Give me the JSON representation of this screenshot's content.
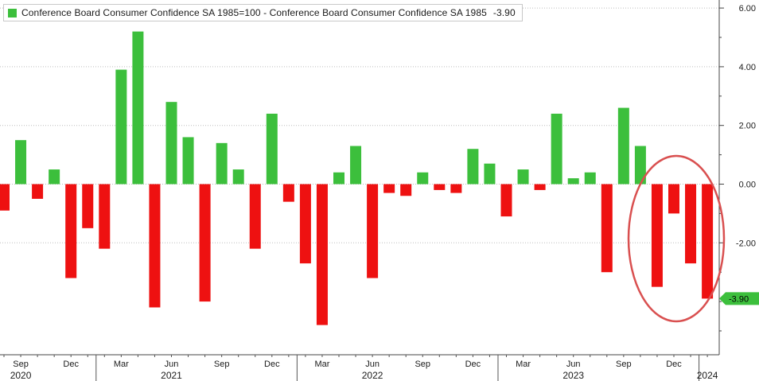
{
  "legend": {
    "series_label": "Conference Board Consumer Confidence SA 1985=100 - Conference Board Consumer Confidence SA 1985",
    "last_value": "-3.90",
    "swatch_color": "#3cbf3c"
  },
  "colors": {
    "positive": "#3cbf3c",
    "negative": "#ee1111",
    "background": "#ffffff",
    "highlight_circle": "#d95050"
  },
  "chart_data": {
    "type": "bar",
    "title": "",
    "xlabel": "",
    "ylabel": "",
    "ylim": [
      -5.8,
      6.2
    ],
    "y_ticks": [
      "6.00",
      "4.00",
      "2.00",
      "0.00",
      "-2.00"
    ],
    "y_axis_position": "right",
    "grid": "horizontal dotted",
    "last_value_label": "-3.90",
    "categories": [
      "2020-07",
      "2020-08",
      "2020-09",
      "2020-10",
      "2020-11",
      "2020-12",
      "2021-01",
      "2021-02",
      "2021-03",
      "2021-04",
      "2021-05",
      "2021-06",
      "2021-07",
      "2021-08",
      "2021-09",
      "2021-10",
      "2021-11",
      "2021-12",
      "2022-01",
      "2022-02",
      "2022-03",
      "2022-04",
      "2022-05",
      "2022-06",
      "2022-07",
      "2022-08",
      "2022-09",
      "2022-10",
      "2022-11",
      "2022-12",
      "2023-01",
      "2023-02",
      "2023-03",
      "2023-04",
      "2023-05",
      "2023-06",
      "2023-07",
      "2023-08",
      "2023-09",
      "2023-10",
      "2023-11",
      "2023-12",
      "2024-01"
    ],
    "values": [
      -0.9,
      1.5,
      -0.5,
      0.5,
      -3.2,
      -1.5,
      -2.2,
      3.9,
      5.2,
      -4.2,
      2.8,
      1.6,
      -4.0,
      1.4,
      0.5,
      -2.2,
      2.4,
      -0.6,
      -2.7,
      -4.8,
      0.4,
      1.3,
      -3.2,
      -0.3,
      -0.4,
      0.4,
      -0.2,
      -0.3,
      1.2,
      0.7,
      -1.1,
      0.5,
      -0.2,
      2.4,
      0.2,
      0.4,
      -3.0,
      2.6,
      1.3,
      -3.5,
      -1.0,
      -2.7,
      -3.9
    ],
    "x_tick_labels": [
      {
        "label": "Sep",
        "index": 1
      },
      {
        "label": "Dec",
        "index": 4
      },
      {
        "label": "Mar",
        "index": 7
      },
      {
        "label": "Jun",
        "index": 10
      },
      {
        "label": "Sep",
        "index": 13
      },
      {
        "label": "Dec",
        "index": 16
      },
      {
        "label": "Mar",
        "index": 19
      },
      {
        "label": "Jun",
        "index": 22
      },
      {
        "label": "Sep",
        "index": 25
      },
      {
        "label": "Dec",
        "index": 28
      },
      {
        "label": "Mar",
        "index": 31
      },
      {
        "label": "Jun",
        "index": 34
      },
      {
        "label": "Sep",
        "index": 37
      },
      {
        "label": "Dec",
        "index": 40
      }
    ],
    "x_year_labels": [
      {
        "label": "2020",
        "index": 1
      },
      {
        "label": "2021",
        "index": 10
      },
      {
        "label": "2022",
        "index": 22
      },
      {
        "label": "2023",
        "index": 34
      },
      {
        "label": "2024",
        "index": 42
      }
    ],
    "year_start_indices": [
      6,
      18,
      30,
      42
    ],
    "highlight": "circle around last four months (2023-10 to 2024-01)"
  }
}
